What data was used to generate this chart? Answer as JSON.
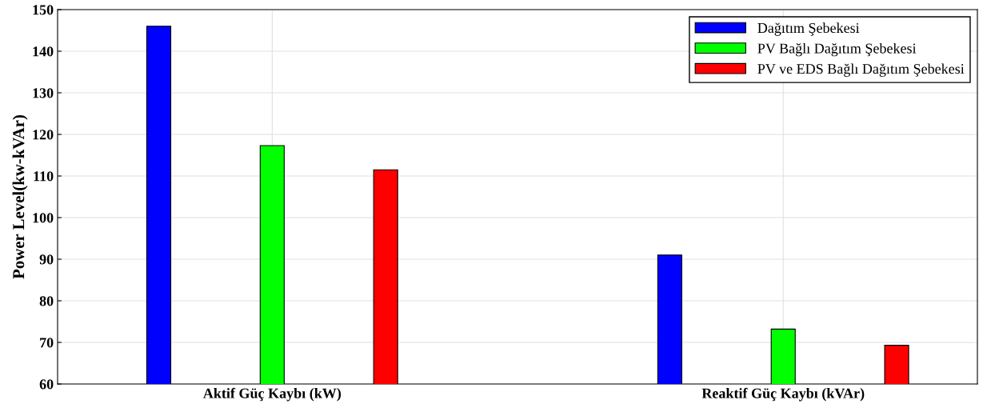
{
  "chart_data": {
    "type": "bar",
    "ylabel": "Power Level(kw-kVAr)",
    "categories": [
      "Aktif Güç Kaybı (kW)",
      "Reaktif Güç Kaybı (kVAr)"
    ],
    "series": [
      {
        "name": "Dağıtım Şebekesi",
        "color": "#0000ff",
        "values": [
          146,
          91
        ]
      },
      {
        "name": "PV Bağlı Dağıtım Şebekesi",
        "color": "#00ff00",
        "values": [
          117.3,
          73.2
        ]
      },
      {
        "name": "PV ve EDS Bağlı Dağıtım Şebekesi",
        "color": "#ff0000",
        "values": [
          111.5,
          69.3
        ]
      }
    ],
    "ylim": [
      60,
      150
    ],
    "yticks": [
      60,
      70,
      80,
      90,
      100,
      110,
      120,
      130,
      140,
      150
    ],
    "grid": true,
    "legend": "top right"
  }
}
